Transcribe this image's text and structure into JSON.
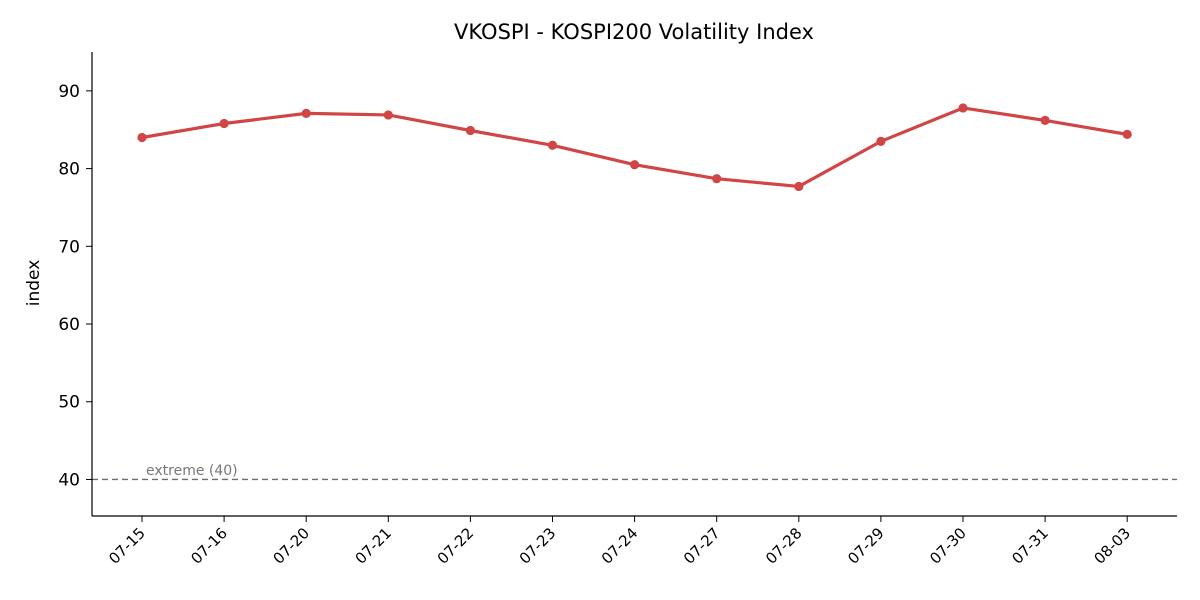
{
  "chart_data": {
    "type": "line",
    "title": "VKOSPI - KOSPI200 Volatility Index",
    "ylabel": "index",
    "xlabel": "",
    "categories": [
      "07-15",
      "07-16",
      "07-20",
      "07-21",
      "07-22",
      "07-23",
      "07-24",
      "07-27",
      "07-28",
      "07-29",
      "07-30",
      "07-31",
      "08-03"
    ],
    "series": [
      {
        "values": [
          84.0,
          85.8,
          87.1,
          86.9,
          84.9,
          83.0,
          80.5,
          78.7,
          77.7,
          83.5,
          87.8,
          86.2,
          84.4
        ],
        "color": "#d04545"
      }
    ],
    "yticks": [
      40,
      50,
      60,
      70,
      80,
      90
    ],
    "ylim": [
      35.3,
      95
    ],
    "grid": false,
    "reference_line": {
      "value": 40,
      "label": "extreme (40)",
      "color": "#6b6b7b",
      "style": "dashed"
    }
  }
}
